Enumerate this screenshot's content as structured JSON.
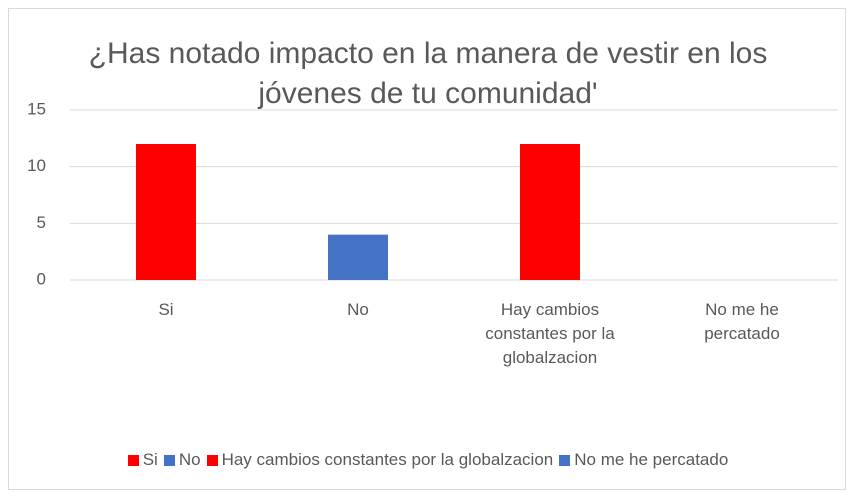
{
  "chart_data": {
    "type": "bar",
    "title": "¿Has notado impacto en la manera de vestir en los jóvenes de tu comunidad'",
    "categories": [
      "Si",
      "No",
      "Hay cambios constantes por la globalzacion",
      "No me he percatado"
    ],
    "values": [
      12,
      4,
      12,
      0
    ],
    "colors": [
      "#ff0000",
      "#4472c4",
      "#ff0000",
      "#4472c4"
    ],
    "ylim": [
      0,
      15
    ],
    "yticks": [
      0,
      5,
      10,
      15
    ],
    "grid": true,
    "legend": "bottom"
  }
}
